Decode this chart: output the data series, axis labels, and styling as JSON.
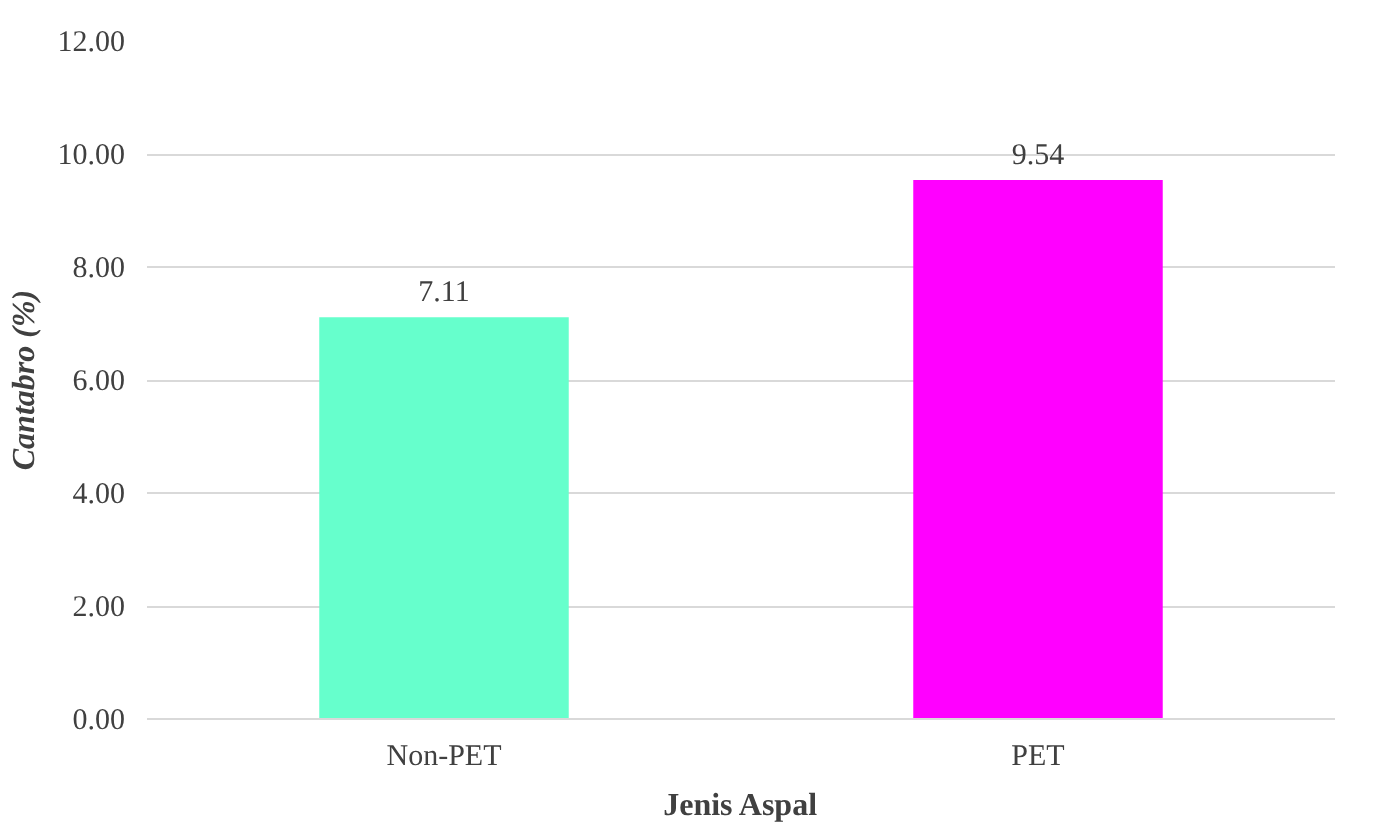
{
  "chart_data": {
    "type": "bar",
    "xlabel": "Jenis Aspal",
    "ylabel": "Cantabro (%)",
    "categories": [
      "Non-PET",
      "PET"
    ],
    "values": [
      7.11,
      9.54
    ],
    "colors": [
      "#66ffcc",
      "#ff00ff"
    ],
    "ylim": [
      0,
      12
    ],
    "yticks": [
      {
        "value": 0,
        "label": "0.00"
      },
      {
        "value": 2,
        "label": "2.00"
      },
      {
        "value": 4,
        "label": "4.00"
      },
      {
        "value": 6,
        "label": "6.00"
      },
      {
        "value": 8,
        "label": "8.00"
      },
      {
        "value": 10,
        "label": "10.00"
      },
      {
        "value": 12,
        "label": "12.00"
      }
    ],
    "grid": "y",
    "data_labels": true
  }
}
